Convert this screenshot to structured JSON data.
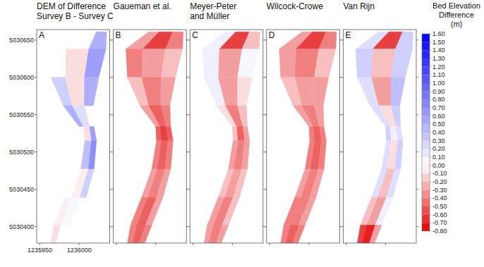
{
  "chart_data": {
    "type": "map",
    "xlim": [
      1235946,
      1236039
    ],
    "ylim": [
      5030378,
      5030664
    ],
    "xticks": [
      1235950,
      1236000
    ],
    "yticks": [
      5030400,
      5030450,
      5030500,
      5030550,
      5030600,
      5030650
    ],
    "channel": {
      "y": [
        5030661,
        5030638,
        5030600,
        5030562,
        5030534,
        5030515,
        5030477,
        5030439,
        5030402,
        5030378
      ],
      "x_left": [
        1235991,
        1235962,
        1235964,
        1235980,
        1236000,
        1236001,
        1235995,
        1235982,
        1235968,
        1235964
      ],
      "x_right": [
        1236035,
        1236034,
        1236025,
        1236018,
        1236019,
        1236022,
        1236019,
        1236009,
        1235995,
        1235986
      ]
    },
    "panels": [
      {
        "label": "A",
        "title": [
          "DEM of Difference",
          "Survey B - Survey C"
        ],
        "cells": [
          [
            null,
            null,
            0.5
          ],
          [
            null,
            -0.1,
            0.6
          ],
          [
            0.3,
            -0.1,
            0.5
          ],
          [
            0.5,
            0.2,
            null
          ],
          [
            null,
            -0.1,
            0.6
          ],
          [
            null,
            0.4,
            0.7
          ],
          [
            null,
            -0.05,
            0.3
          ],
          [
            -0.05,
            0.05,
            null
          ],
          [
            -0.1,
            null,
            null
          ]
        ]
      },
      {
        "label": "B",
        "title": [
          "Gaueman et al."
        ],
        "tick_labels": false,
        "cells": [
          [
            -0.3,
            -0.6,
            -0.4
          ],
          [
            -0.4,
            -0.3,
            -0.2
          ],
          [
            -0.2,
            -0.4,
            -0.3
          ],
          [
            -0.3,
            -0.5,
            -0.4
          ],
          [
            -0.5,
            -0.6,
            -0.5
          ],
          [
            -0.4,
            -0.5,
            -0.4
          ],
          [
            -0.3,
            -0.4,
            -0.3
          ],
          [
            -0.4,
            -0.5,
            -0.3
          ],
          [
            -0.4,
            -0.5,
            -0.4
          ]
        ]
      },
      {
        "label": "C",
        "title": [
          "Meyer-Peter",
          "and Müller"
        ],
        "tick_labels": false,
        "cells": [
          [
            0.1,
            -0.6,
            -0.2
          ],
          [
            0.1,
            -0.3,
            0.05
          ],
          [
            0.1,
            -0.3,
            -0.1
          ],
          [
            -0.1,
            -0.4,
            -0.2
          ],
          [
            -0.2,
            -0.5,
            -0.3
          ],
          [
            -0.3,
            -0.4,
            -0.3
          ],
          [
            -0.2,
            -0.3,
            -0.2
          ],
          [
            -0.3,
            -0.4,
            -0.2
          ],
          [
            -0.3,
            -0.4,
            -0.3
          ]
        ]
      },
      {
        "label": "D",
        "title": [
          "Wilcock-Crowe"
        ],
        "tick_labels": false,
        "cells": [
          [
            -0.3,
            -0.6,
            -0.4
          ],
          [
            -0.3,
            -0.4,
            -0.2
          ],
          [
            -0.2,
            -0.3,
            -0.3
          ],
          [
            -0.3,
            -0.4,
            -0.3
          ],
          [
            -0.4,
            -0.5,
            -0.4
          ],
          [
            -0.4,
            -0.5,
            -0.4
          ],
          [
            -0.3,
            -0.4,
            -0.3
          ],
          [
            -0.4,
            -0.4,
            -0.3
          ],
          [
            -0.4,
            -0.5,
            -0.4
          ]
        ]
      },
      {
        "label": "E",
        "title": [
          "Van Rijn"
        ],
        "tick_labels": false,
        "cells": [
          [
            0.2,
            -0.6,
            0.3
          ],
          [
            0.3,
            -0.2,
            0.3
          ],
          [
            0.2,
            -0.3,
            0.4
          ],
          [
            0.2,
            -0.1,
            0.3
          ],
          [
            0.3,
            0.1,
            0.2
          ],
          [
            0.2,
            -0.1,
            0.3
          ],
          [
            0.2,
            -0.2,
            0.2
          ],
          [
            -0.2,
            -0.3,
            0.1
          ],
          [
            -0.6,
            -0.7,
            -0.3
          ]
        ]
      }
    ],
    "colorbar": {
      "title": [
        "Bed Elevation",
        "Difference",
        "(m)"
      ],
      "range": [
        -0.8,
        1.6
      ],
      "colors": [
        "#e00000",
        "#ffffff",
        "#0000f0"
      ],
      "ticks": [
        {
          "value": 1.6,
          "label": "1.60"
        },
        {
          "value": 1.5,
          "label": "1.50"
        },
        {
          "value": 1.4,
          "label": "1.40"
        },
        {
          "value": 1.3,
          "label": "1.30"
        },
        {
          "value": 1.2,
          "label": "1.20"
        },
        {
          "value": 1.1,
          "label": "1.10"
        },
        {
          "value": 1.0,
          "label": "1.00"
        },
        {
          "value": 0.9,
          "label": "0.90"
        },
        {
          "value": 0.8,
          "label": "0.80"
        },
        {
          "value": 0.7,
          "label": "0.70"
        },
        {
          "value": 0.6,
          "label": "0.60"
        },
        {
          "value": 0.5,
          "label": "0.50"
        },
        {
          "value": 0.4,
          "label": "0.40"
        },
        {
          "value": 0.3,
          "label": "0.30"
        },
        {
          "value": 0.2,
          "label": "0.20"
        },
        {
          "value": 0.1,
          "label": "0.10"
        },
        {
          "value": 0,
          "label": "0.00"
        },
        {
          "value": -0.1,
          "label": "-0.10"
        },
        {
          "value": -0.2,
          "label": "-0.20"
        },
        {
          "value": -0.3,
          "label": "-0.30"
        },
        {
          "value": -0.4,
          "label": "-0.40"
        },
        {
          "value": -0.5,
          "label": "-0.50"
        },
        {
          "value": -0.6,
          "label": "-0.60"
        },
        {
          "value": -0.7,
          "label": "-0.70"
        },
        {
          "value": -0.8,
          "label": "-0.80"
        }
      ]
    }
  }
}
